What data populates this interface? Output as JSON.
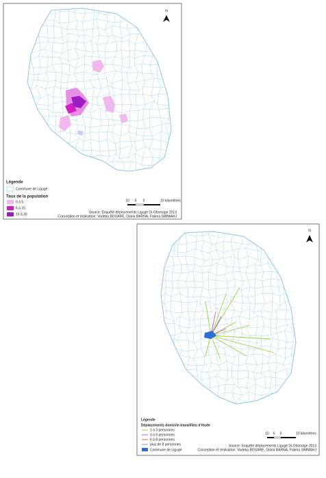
{
  "maps": [
    {
      "north": "N",
      "legend": {
        "title": "Légende",
        "commune": "Commune de Ligugé",
        "subtitle": "Taux de la population",
        "items": [
          "0 à 5",
          "5 à 15",
          "15 à 30"
        ]
      },
      "scale": [
        "10",
        "5",
        "0",
        "10 kilomètres"
      ],
      "source": "Source: Enquête déplacements Ligugé Di-Obsmage 2013",
      "credits": "Conception et réalisation: Vadeba BOUARE, Diana BARNA, Fatima SIMMAHJ"
    },
    {
      "north": "N",
      "legend": {
        "title": "Légende",
        "subtitle": "Déplacements domicile-travail/lieu d'étude",
        "items": [
          "1 à 3 personnes",
          "3 à 6 personnes",
          "6 à 8 personnes",
          "plus de 8 personnes"
        ],
        "commune": "Commune de Ligugé"
      },
      "scale": [
        "10",
        "5",
        "0",
        "10 kilomètres"
      ],
      "source": "Source: Enquête déplacements Ligugé Di-Obsmage 2013",
      "credits": "Conception et réalisation: Vadeba BOUARE, Diana BARNA, Fatima SIMMAHJ"
    }
  ]
}
